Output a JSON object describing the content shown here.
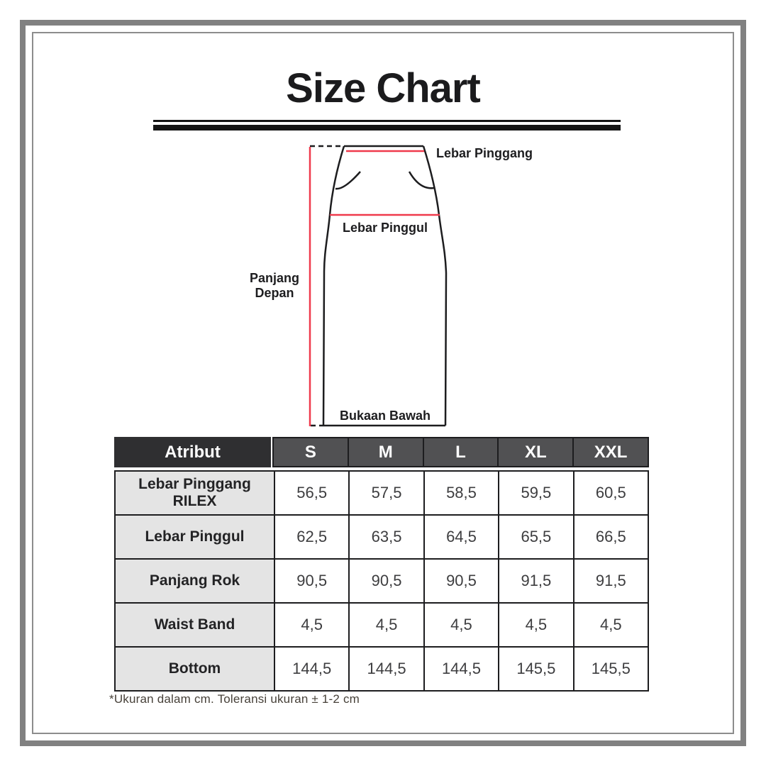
{
  "title": "Size Chart",
  "diagram": {
    "label_waist": "Lebar Pinggang",
    "label_hip": "Lebar Pinggul",
    "label_front_length_1": "Panjang",
    "label_front_length_2": "Depan",
    "label_bottom_opening": "Bukaan Bawah",
    "measure_line_color": "#ef3a4c",
    "outline_color": "#1d1d1f"
  },
  "size_table": {
    "header": [
      "Atribut",
      "S",
      "M",
      "L",
      "XL",
      "XXL"
    ],
    "rows": [
      [
        "Lebar Pinggang RILEX",
        "56,5",
        "57,5",
        "58,5",
        "59,5",
        "60,5"
      ],
      [
        "Lebar Pinggul",
        "62,5",
        "63,5",
        "64,5",
        "65,5",
        "66,5"
      ],
      [
        "Panjang Rok",
        "90,5",
        "90,5",
        "90,5",
        "91,5",
        "91,5"
      ],
      [
        "Waist Band",
        "4,5",
        "4,5",
        "4,5",
        "4,5",
        "4,5"
      ],
      [
        "Bottom",
        "144,5",
        "144,5",
        "144,5",
        "145,5",
        "145,5"
      ]
    ],
    "note": "*Ukuran dalam cm. Toleransi ukuran ± 1-2 cm"
  },
  "colors": {
    "frame_outer": "#818181",
    "frame_inner": "#8d8d8d",
    "header_attr_bg": "#2f2f31",
    "header_size_bg": "#515153",
    "row_label_bg": "#e4e4e4",
    "table_border": "#1d1d1f",
    "title_text": "#1b1b1d"
  }
}
